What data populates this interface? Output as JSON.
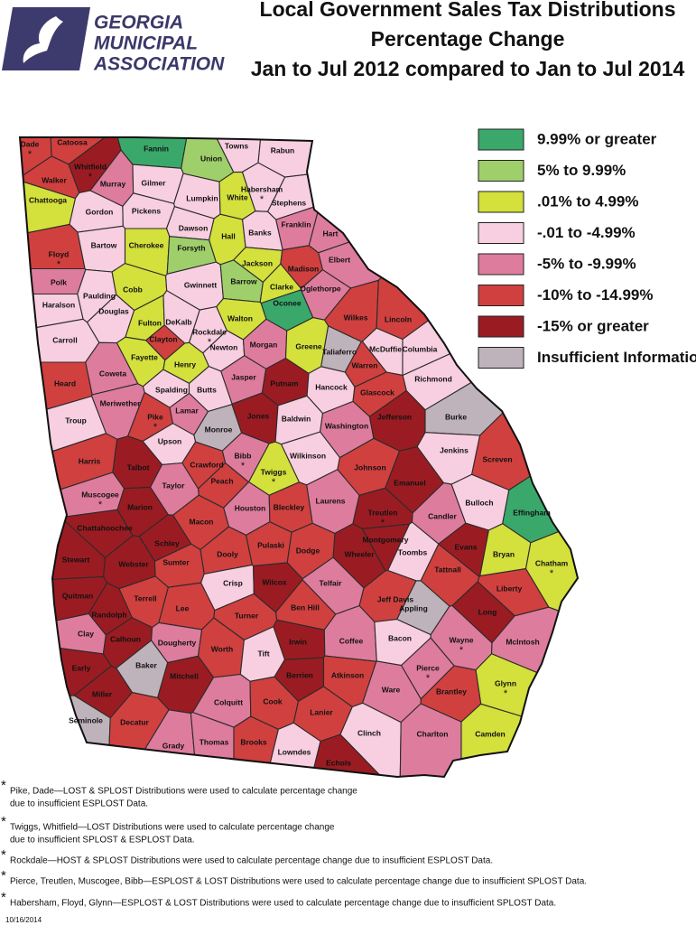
{
  "header": {
    "logo": [
      "GEORGIA",
      "MUNICIPAL",
      "ASSOCIATION"
    ],
    "title": [
      "Local Government Sales Tax Distributions",
      "Percentage Change",
      "Jan to Jul 2012 compared to Jan to Jul 2014"
    ]
  },
  "legend": [
    {
      "label": "9.99% or greater",
      "color": "#3aa86b"
    },
    {
      "label": "5% to 9.99%",
      "color": "#9fcf6b"
    },
    {
      "label": ".01% to 4.99%",
      "color": "#d4e03c"
    },
    {
      "label": "-.01 to -4.99%",
      "color": "#f8cfe0"
    },
    {
      "label": "-5% to -9.99%",
      "color": "#de7c9e"
    },
    {
      "label": "-10% to -14.99%",
      "color": "#d0403f"
    },
    {
      "label": "-15% or greater",
      "color": "#9a1c22"
    },
    {
      "label": "Insufficient Information",
      "color": "#bfb3bb"
    }
  ],
  "counties": [
    {
      "name": "Dade",
      "class": 5,
      "mark": "*"
    },
    {
      "name": "Catoosa",
      "class": 5
    },
    {
      "name": "Walker",
      "class": 5
    },
    {
      "name": "Whitfield",
      "class": 6,
      "mark": "*"
    },
    {
      "name": "Murray",
      "class": 4
    },
    {
      "name": "Fannin",
      "class": 0
    },
    {
      "name": "Union",
      "class": 1
    },
    {
      "name": "Towns",
      "class": 3
    },
    {
      "name": "Rabun",
      "class": 3
    },
    {
      "name": "Gilmer",
      "class": 3
    },
    {
      "name": "Lumpkin",
      "class": 3
    },
    {
      "name": "White",
      "class": 2
    },
    {
      "name": "Habersham",
      "class": 3,
      "mark": "*"
    },
    {
      "name": "Stephens",
      "class": 3
    },
    {
      "name": "Chattooga",
      "class": 2
    },
    {
      "name": "Gordon",
      "class": 3
    },
    {
      "name": "Pickens",
      "class": 3
    },
    {
      "name": "Dawson",
      "class": 3
    },
    {
      "name": "Hall",
      "class": 2
    },
    {
      "name": "Banks",
      "class": 3
    },
    {
      "name": "Franklin",
      "class": 4
    },
    {
      "name": "Hart",
      "class": 4
    },
    {
      "name": "Floyd",
      "class": 5,
      "mark": "*"
    },
    {
      "name": "Bartow",
      "class": 3
    },
    {
      "name": "Cherokee",
      "class": 2
    },
    {
      "name": "Forsyth",
      "class": 1
    },
    {
      "name": "Jackson",
      "class": 2
    },
    {
      "name": "Elbert",
      "class": 4
    },
    {
      "name": "Madison",
      "class": 5
    },
    {
      "name": "Polk",
      "class": 4
    },
    {
      "name": "Paulding",
      "class": 3
    },
    {
      "name": "Cobb",
      "class": 2
    },
    {
      "name": "Gwinnett",
      "class": 3
    },
    {
      "name": "Barrow",
      "class": 1
    },
    {
      "name": "Clarke",
      "class": 2
    },
    {
      "name": "Oglethorpe",
      "class": 4
    },
    {
      "name": "Oconee",
      "class": 0
    },
    {
      "name": "Haralson",
      "class": 3
    },
    {
      "name": "Douglas",
      "class": 3
    },
    {
      "name": "Fulton",
      "class": 2
    },
    {
      "name": "DeKalb",
      "class": 3
    },
    {
      "name": "Rockdale",
      "class": 3,
      "mark": "*"
    },
    {
      "name": "Walton",
      "class": 2
    },
    {
      "name": "Wilkes",
      "class": 5
    },
    {
      "name": "Lincoln",
      "class": 5
    },
    {
      "name": "Carroll",
      "class": 3
    },
    {
      "name": "Clayton",
      "class": 5
    },
    {
      "name": "Newton",
      "class": 3
    },
    {
      "name": "Morgan",
      "class": 4
    },
    {
      "name": "Greene",
      "class": 2
    },
    {
      "name": "Taliaferro",
      "class": 7
    },
    {
      "name": "McDuffie",
      "class": 3
    },
    {
      "name": "Columbia",
      "class": 3
    },
    {
      "name": "Fayette",
      "class": 2
    },
    {
      "name": "Henry",
      "class": 2
    },
    {
      "name": "Coweta",
      "class": 4
    },
    {
      "name": "Heard",
      "class": 5
    },
    {
      "name": "Jasper",
      "class": 4
    },
    {
      "name": "Putnam",
      "class": 6
    },
    {
      "name": "Warren",
      "class": 5
    },
    {
      "name": "Richmond",
      "class": 3
    },
    {
      "name": "Spalding",
      "class": 3
    },
    {
      "name": "Butts",
      "class": 3
    },
    {
      "name": "Hancock",
      "class": 3
    },
    {
      "name": "Glascock",
      "class": 5
    },
    {
      "name": "Meriwether",
      "class": 4
    },
    {
      "name": "Pike",
      "class": 5,
      "mark": "*"
    },
    {
      "name": "Lamar",
      "class": 4
    },
    {
      "name": "Jones",
      "class": 6
    },
    {
      "name": "Baldwin",
      "class": 3
    },
    {
      "name": "Washington",
      "class": 4
    },
    {
      "name": "Jefferson",
      "class": 6
    },
    {
      "name": "Burke",
      "class": 7
    },
    {
      "name": "Troup",
      "class": 3
    },
    {
      "name": "Monroe",
      "class": 7
    },
    {
      "name": "Upson",
      "class": 3
    },
    {
      "name": "Jenkins",
      "class": 3
    },
    {
      "name": "Wilkinson",
      "class": 3
    },
    {
      "name": "Bibb",
      "class": 4,
      "mark": "*"
    },
    {
      "name": "Harris",
      "class": 5
    },
    {
      "name": "Talbot",
      "class": 6
    },
    {
      "name": "Crawford",
      "class": 5
    },
    {
      "name": "Twiggs",
      "class": 2,
      "mark": "*"
    },
    {
      "name": "Johnson",
      "class": 5
    },
    {
      "name": "Screven",
      "class": 5
    },
    {
      "name": "Emanuel",
      "class": 6
    },
    {
      "name": "Peach",
      "class": 5
    },
    {
      "name": "Taylor",
      "class": 4
    },
    {
      "name": "Laurens",
      "class": 4
    },
    {
      "name": "Houston",
      "class": 4
    },
    {
      "name": "Muscogee",
      "class": 4,
      "mark": "*"
    },
    {
      "name": "Marion",
      "class": 6
    },
    {
      "name": "Macon",
      "class": 5
    },
    {
      "name": "Bleckley",
      "class": 5
    },
    {
      "name": "Treutlen",
      "class": 6,
      "mark": "*"
    },
    {
      "name": "Candler",
      "class": 4
    },
    {
      "name": "Bulloch",
      "class": 3
    },
    {
      "name": "Effingham",
      "class": 0
    },
    {
      "name": "Chattahoochee",
      "class": 6
    },
    {
      "name": "Schley",
      "class": 6
    },
    {
      "name": "Montgomery",
      "class": 6
    },
    {
      "name": "Evans",
      "class": 6
    },
    {
      "name": "Toombs",
      "class": 3
    },
    {
      "name": "Bryan",
      "class": 2
    },
    {
      "name": "Dooly",
      "class": 5
    },
    {
      "name": "Pulaski",
      "class": 5
    },
    {
      "name": "Dodge",
      "class": 5
    },
    {
      "name": "Wheeler",
      "class": 6
    },
    {
      "name": "Stewart",
      "class": 6
    },
    {
      "name": "Webster",
      "class": 6
    },
    {
      "name": "Sumter",
      "class": 5
    },
    {
      "name": "Tattnall",
      "class": 5
    },
    {
      "name": "Chatham",
      "class": 2,
      "mark": "*"
    },
    {
      "name": "Liberty",
      "class": 5
    },
    {
      "name": "Quitman",
      "class": 6
    },
    {
      "name": "Terrell",
      "class": 5
    },
    {
      "name": "Crisp",
      "class": 3
    },
    {
      "name": "Wilcox",
      "class": 6
    },
    {
      "name": "Telfair",
      "class": 4
    },
    {
      "name": "Jeff Davis",
      "class": 5
    },
    {
      "name": "Appling",
      "class": 7
    },
    {
      "name": "Long",
      "class": 6
    },
    {
      "name": "Randolph",
      "class": 6
    },
    {
      "name": "Lee",
      "class": 5
    },
    {
      "name": "Turner",
      "class": 5
    },
    {
      "name": "Ben Hill",
      "class": 5
    },
    {
      "name": "Clay",
      "class": 4
    },
    {
      "name": "Calhoun",
      "class": 6
    },
    {
      "name": "Dougherty",
      "class": 4
    },
    {
      "name": "Irwin",
      "class": 6
    },
    {
      "name": "Coffee",
      "class": 4
    },
    {
      "name": "Bacon",
      "class": 3
    },
    {
      "name": "Wayne",
      "class": 4,
      "mark": "*"
    },
    {
      "name": "McIntosh",
      "class": 4
    },
    {
      "name": "Worth",
      "class": 5
    },
    {
      "name": "Tift",
      "class": 3
    },
    {
      "name": "Early",
      "class": 6
    },
    {
      "name": "Baker",
      "class": 7
    },
    {
      "name": "Mitchell",
      "class": 6
    },
    {
      "name": "Berrien",
      "class": 6
    },
    {
      "name": "Atkinson",
      "class": 5
    },
    {
      "name": "Pierce",
      "class": 4,
      "mark": "*"
    },
    {
      "name": "Glynn",
      "class": 2,
      "mark": "*"
    },
    {
      "name": "Brantley",
      "class": 5
    },
    {
      "name": "Miller",
      "class": 6
    },
    {
      "name": "Ware",
      "class": 4
    },
    {
      "name": "Colquitt",
      "class": 4
    },
    {
      "name": "Cook",
      "class": 5
    },
    {
      "name": "Lanier",
      "class": 5
    },
    {
      "name": "Seminole",
      "class": 7
    },
    {
      "name": "Decatur",
      "class": 5
    },
    {
      "name": "Clinch",
      "class": 3
    },
    {
      "name": "Charlton",
      "class": 4
    },
    {
      "name": "Camden",
      "class": 2
    },
    {
      "name": "Grady",
      "class": 4
    },
    {
      "name": "Thomas",
      "class": 4
    },
    {
      "name": "Brooks",
      "class": 5
    },
    {
      "name": "Lowndes",
      "class": 3
    },
    {
      "name": "Echols",
      "class": 6
    }
  ],
  "footnotes": [
    {
      "mark": "*",
      "lines": [
        "Pike, Dade—LOST & SPLOST Distributions were used to calculate percentage change",
        "due to insufficient ESPLOST Data."
      ]
    },
    {
      "mark": "*",
      "lines": [
        "Twiggs, Whitfield—LOST Distributions were used to calculate percentage change",
        "due to insufficient SPLOST & ESPLOST Data."
      ]
    },
    {
      "mark": "*",
      "lines": [
        "Rockdale—HOST & SPLOST Distributions were used to calculate percentage change due to insufficient ESPLOST Data."
      ]
    },
    {
      "mark": "*",
      "lines": [
        "Pierce, Treutlen, Muscogee, Bibb—ESPLOST & LOST Distributions were used to calculate percentage change due to insufficient SPLOST Data."
      ]
    },
    {
      "mark": "*",
      "lines": [
        "Habersham, Floyd, Glynn—ESPLOST & LOST Distributions were used to calculate percentage change due to insufficient SPLOST Data."
      ]
    }
  ],
  "date": "10/16/2014"
}
